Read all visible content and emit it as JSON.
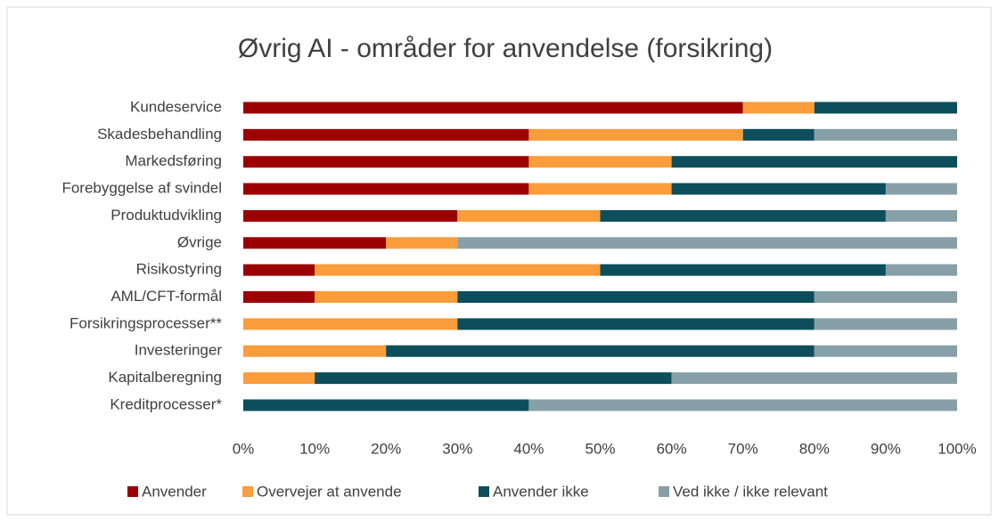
{
  "chart_data": {
    "type": "stacked_barh",
    "title": "Øvrig AI - områder for anvendelse (forsikring)",
    "categories": [
      "Kundeservice",
      "Skadesbehandling",
      "Markedsføring",
      "Forebyggelse af svindel",
      "Produktudvikling",
      "Øvrige",
      "Risikostyring",
      "AML/CFT-formål",
      "Forsikringsprocesser**",
      "Investeringer",
      "Kapitalberegning",
      "Kreditprocesser*"
    ],
    "series": [
      {
        "name": "Anvender",
        "color": "#9c0000",
        "values": [
          70,
          40,
          40,
          40,
          30,
          20,
          10,
          10,
          0,
          0,
          0,
          0
        ]
      },
      {
        "name": "Overvejer at anvende",
        "color": "#fb9d3a",
        "values": [
          10,
          30,
          20,
          20,
          20,
          10,
          40,
          20,
          30,
          20,
          10,
          0
        ]
      },
      {
        "name": "Anvender ikke",
        "color": "#0c4e5b",
        "values": [
          20,
          10,
          40,
          30,
          40,
          0,
          40,
          50,
          50,
          60,
          50,
          40
        ]
      },
      {
        "name": "Ved ikke / ikke relevant",
        "color": "#87a0a8",
        "values": [
          0,
          20,
          0,
          10,
          10,
          70,
          10,
          20,
          20,
          20,
          40,
          60
        ]
      }
    ],
    "xlim": [
      0,
      100
    ],
    "xticks": [
      {
        "value": 0,
        "label": "0%"
      },
      {
        "value": 10,
        "label": "10%"
      },
      {
        "value": 20,
        "label": "20%"
      },
      {
        "value": 30,
        "label": "30%"
      },
      {
        "value": 40,
        "label": "40%"
      },
      {
        "value": 50,
        "label": "50%"
      },
      {
        "value": 60,
        "label": "60%"
      },
      {
        "value": 70,
        "label": "70%"
      },
      {
        "value": 80,
        "label": "80%"
      },
      {
        "value": 90,
        "label": "90%"
      },
      {
        "value": 100,
        "label": "100%"
      }
    ],
    "legend": "bottom"
  }
}
